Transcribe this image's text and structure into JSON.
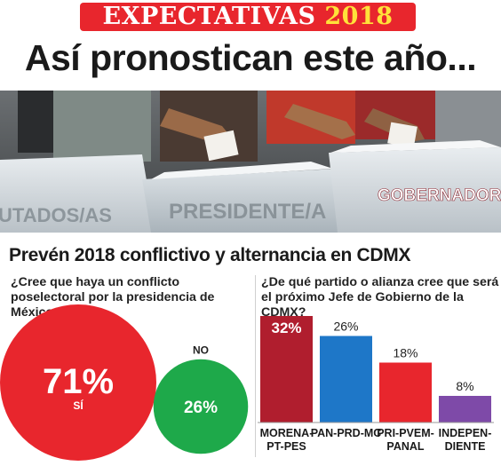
{
  "banner": {
    "word": "EXPECTATIVAS",
    "year": "2018"
  },
  "headline": "Así pronostican este año...",
  "photo": {
    "box_labels": [
      "UTADOS/AS",
      "PRESIDENTE/A",
      "GOBERNADOR/A"
    ]
  },
  "subheadline": "Prevén 2018 conflictivo y alternancia en CDMX",
  "colors": {
    "red": "#e8262d",
    "green": "#1ea94a",
    "maroon": "#b01e2e",
    "blue": "#1e77c8",
    "purple": "#7e4aa8"
  },
  "chart_data": [
    {
      "type": "pie",
      "question": "¿Cree que haya un conflicto poselectoral por la presidencia de México?",
      "slices": [
        {
          "label": "SÍ",
          "value": 71,
          "display": "71%",
          "color": "#e8262d"
        },
        {
          "label": "NO",
          "value": 26,
          "display": "26%",
          "color": "#1ea94a"
        }
      ]
    },
    {
      "type": "bar",
      "question": "¿De qué partido o alianza cree que será el próximo Jefe de Gobierno de la CDMX?",
      "categories": [
        "MORENA-PT-PES",
        "PAN-PRD-MC",
        "PRI-PVEM-PANAL",
        "INDEPEN-DIENTE"
      ],
      "category_lines": [
        [
          "MORENA-",
          "PT-PES"
        ],
        [
          "PAN-PRD-MC"
        ],
        [
          "PRI-PVEM-",
          "PANAL"
        ],
        [
          "INDEPEN-",
          "DIENTE"
        ]
      ],
      "values": [
        32,
        26,
        18,
        8
      ],
      "labels": [
        "32%",
        "26%",
        "18%",
        "8%"
      ],
      "colors": [
        "#b01e2e",
        "#1e77c8",
        "#e8262d",
        "#7e4aa8"
      ]
    }
  ]
}
